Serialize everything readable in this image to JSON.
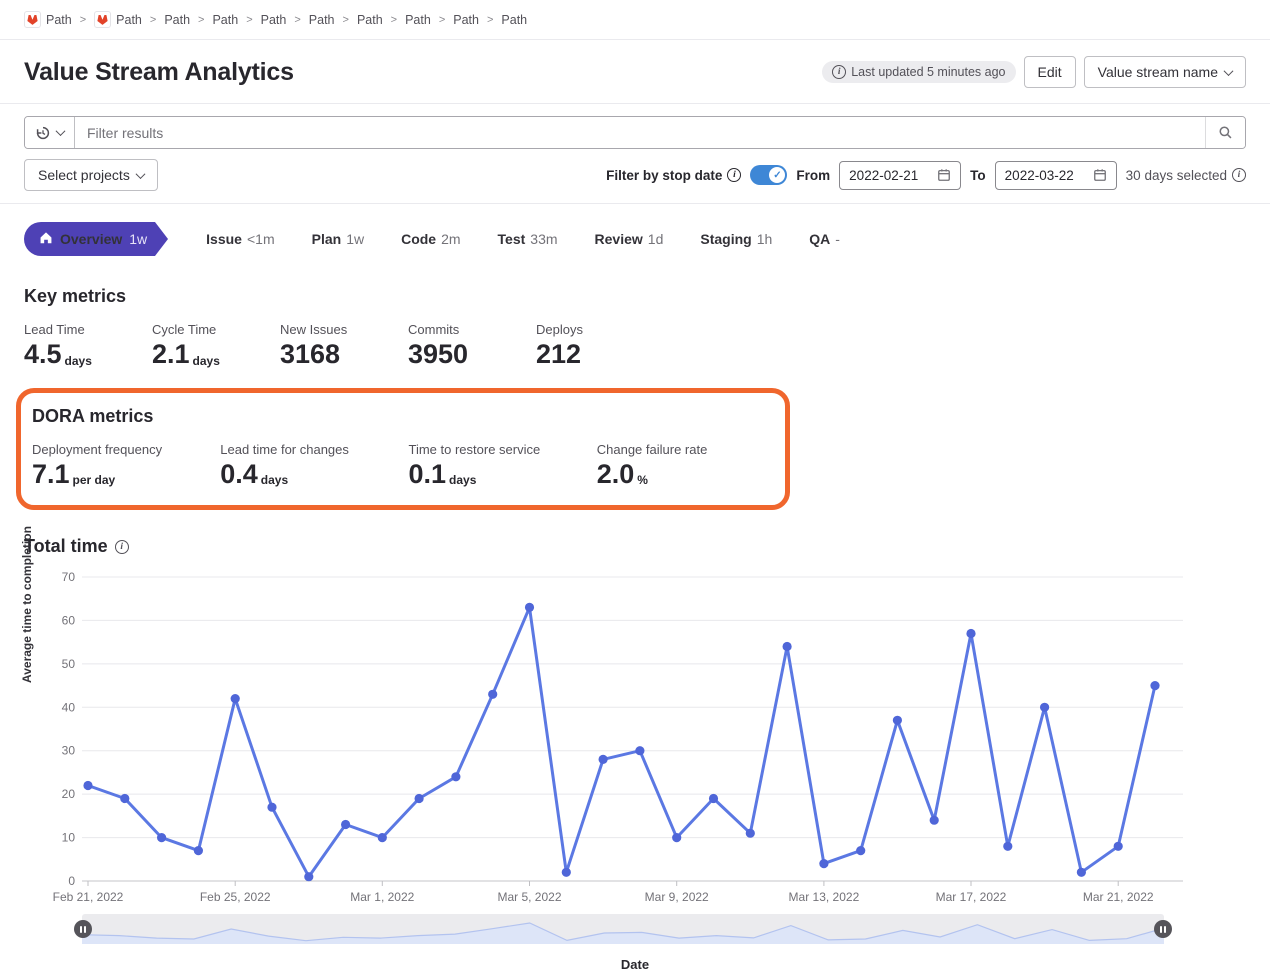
{
  "breadcrumb": {
    "items": [
      {
        "label": "Path",
        "has_icon": true
      },
      {
        "label": "Path",
        "has_icon": true
      },
      {
        "label": "Path",
        "has_icon": false
      },
      {
        "label": "Path",
        "has_icon": false
      },
      {
        "label": "Path",
        "has_icon": false
      },
      {
        "label": "Path",
        "has_icon": false
      },
      {
        "label": "Path",
        "has_icon": false
      },
      {
        "label": "Path",
        "has_icon": false
      },
      {
        "label": "Path",
        "has_icon": false
      },
      {
        "label": "Path",
        "has_icon": false
      }
    ]
  },
  "header": {
    "title": "Value Stream Analytics",
    "last_updated": "Last updated 5 minutes ago",
    "edit_label": "Edit",
    "stream_dropdown": "Value stream name"
  },
  "filters": {
    "search_placeholder": "Filter results",
    "select_projects": "Select projects",
    "stop_date_label": "Filter by stop date",
    "toggle_on": true,
    "from_label": "From",
    "from_value": "2022-02-21",
    "to_label": "To",
    "to_value": "2022-03-22",
    "days_selected": "30 days selected"
  },
  "stages": [
    {
      "name": "Overview",
      "value": "1w",
      "active": true
    },
    {
      "name": "Issue",
      "value": "<1m",
      "active": false
    },
    {
      "name": "Plan",
      "value": "1w",
      "active": false
    },
    {
      "name": "Code",
      "value": "2m",
      "active": false
    },
    {
      "name": "Test",
      "value": "33m",
      "active": false
    },
    {
      "name": "Review",
      "value": "1d",
      "active": false
    },
    {
      "name": "Staging",
      "value": "1h",
      "active": false
    },
    {
      "name": "QA",
      "value": "-",
      "active": false
    }
  ],
  "key_metrics": {
    "title": "Key metrics",
    "items": [
      {
        "label": "Lead Time",
        "value": "4.5",
        "unit": "days"
      },
      {
        "label": "Cycle Time",
        "value": "2.1",
        "unit": "days"
      },
      {
        "label": "New Issues",
        "value": "3168",
        "unit": ""
      },
      {
        "label": "Commits",
        "value": "3950",
        "unit": ""
      },
      {
        "label": "Deploys",
        "value": "212",
        "unit": ""
      }
    ]
  },
  "dora_metrics": {
    "title": "DORA metrics",
    "highlight_color": "#f0662d",
    "items": [
      {
        "label": "Deployment frequency",
        "value": "7.1",
        "unit": "per day"
      },
      {
        "label": "Lead time for changes",
        "value": "0.4",
        "unit": "days"
      },
      {
        "label": "Time to restore service",
        "value": "0.1",
        "unit": "days"
      },
      {
        "label": "Change failure rate",
        "value": "2.0",
        "unit": "%"
      }
    ]
  },
  "chart_data": {
    "type": "line",
    "title": "Total time",
    "xlabel": "Date",
    "ylabel": "Average time to completion",
    "ylim": [
      0,
      70
    ],
    "y_ticks": [
      0,
      10,
      20,
      30,
      40,
      50,
      60,
      70
    ],
    "grid": true,
    "legend": false,
    "x": [
      "Feb 21",
      "Feb 22",
      "Feb 23",
      "Feb 24",
      "Feb 25",
      "Feb 26",
      "Feb 27",
      "Feb 28",
      "Mar 1",
      "Mar 2",
      "Mar 3",
      "Mar 4",
      "Mar 5",
      "Mar 6",
      "Mar 7",
      "Mar 8",
      "Mar 9",
      "Mar 10",
      "Mar 11",
      "Mar 12",
      "Mar 13",
      "Mar 14",
      "Mar 15",
      "Mar 16",
      "Mar 17",
      "Mar 18",
      "Mar 19",
      "Mar 20",
      "Mar 21",
      "Mar 22"
    ],
    "values": [
      22,
      19,
      10,
      7,
      42,
      17,
      1,
      13,
      10,
      19,
      24,
      43,
      63,
      2,
      28,
      30,
      10,
      19,
      11,
      54,
      4,
      7,
      37,
      14,
      57,
      8,
      40,
      2,
      8,
      45
    ],
    "x_tick_labels": [
      "Feb 21, 2022",
      "Feb 25, 2022",
      "Mar 1, 2022",
      "Mar 5, 2022",
      "Mar 9, 2022",
      "Mar 13, 2022",
      "Mar 17, 2022",
      "Mar 21, 2022"
    ],
    "x_tick_indices": [
      0,
      4,
      8,
      12,
      16,
      20,
      24,
      28
    ],
    "line_color": "#5b78e3",
    "point_color": "#4f66d8",
    "brush_fill": "#dde5f8",
    "brush_stroke": "#b3c3ef"
  },
  "icons": [
    "gitlab-fox-icon",
    "info-icon",
    "history-icon",
    "chevron-down-icon",
    "search-icon",
    "calendar-icon",
    "home-icon",
    "toggle-check-icon",
    "brush-handle-icon"
  ]
}
